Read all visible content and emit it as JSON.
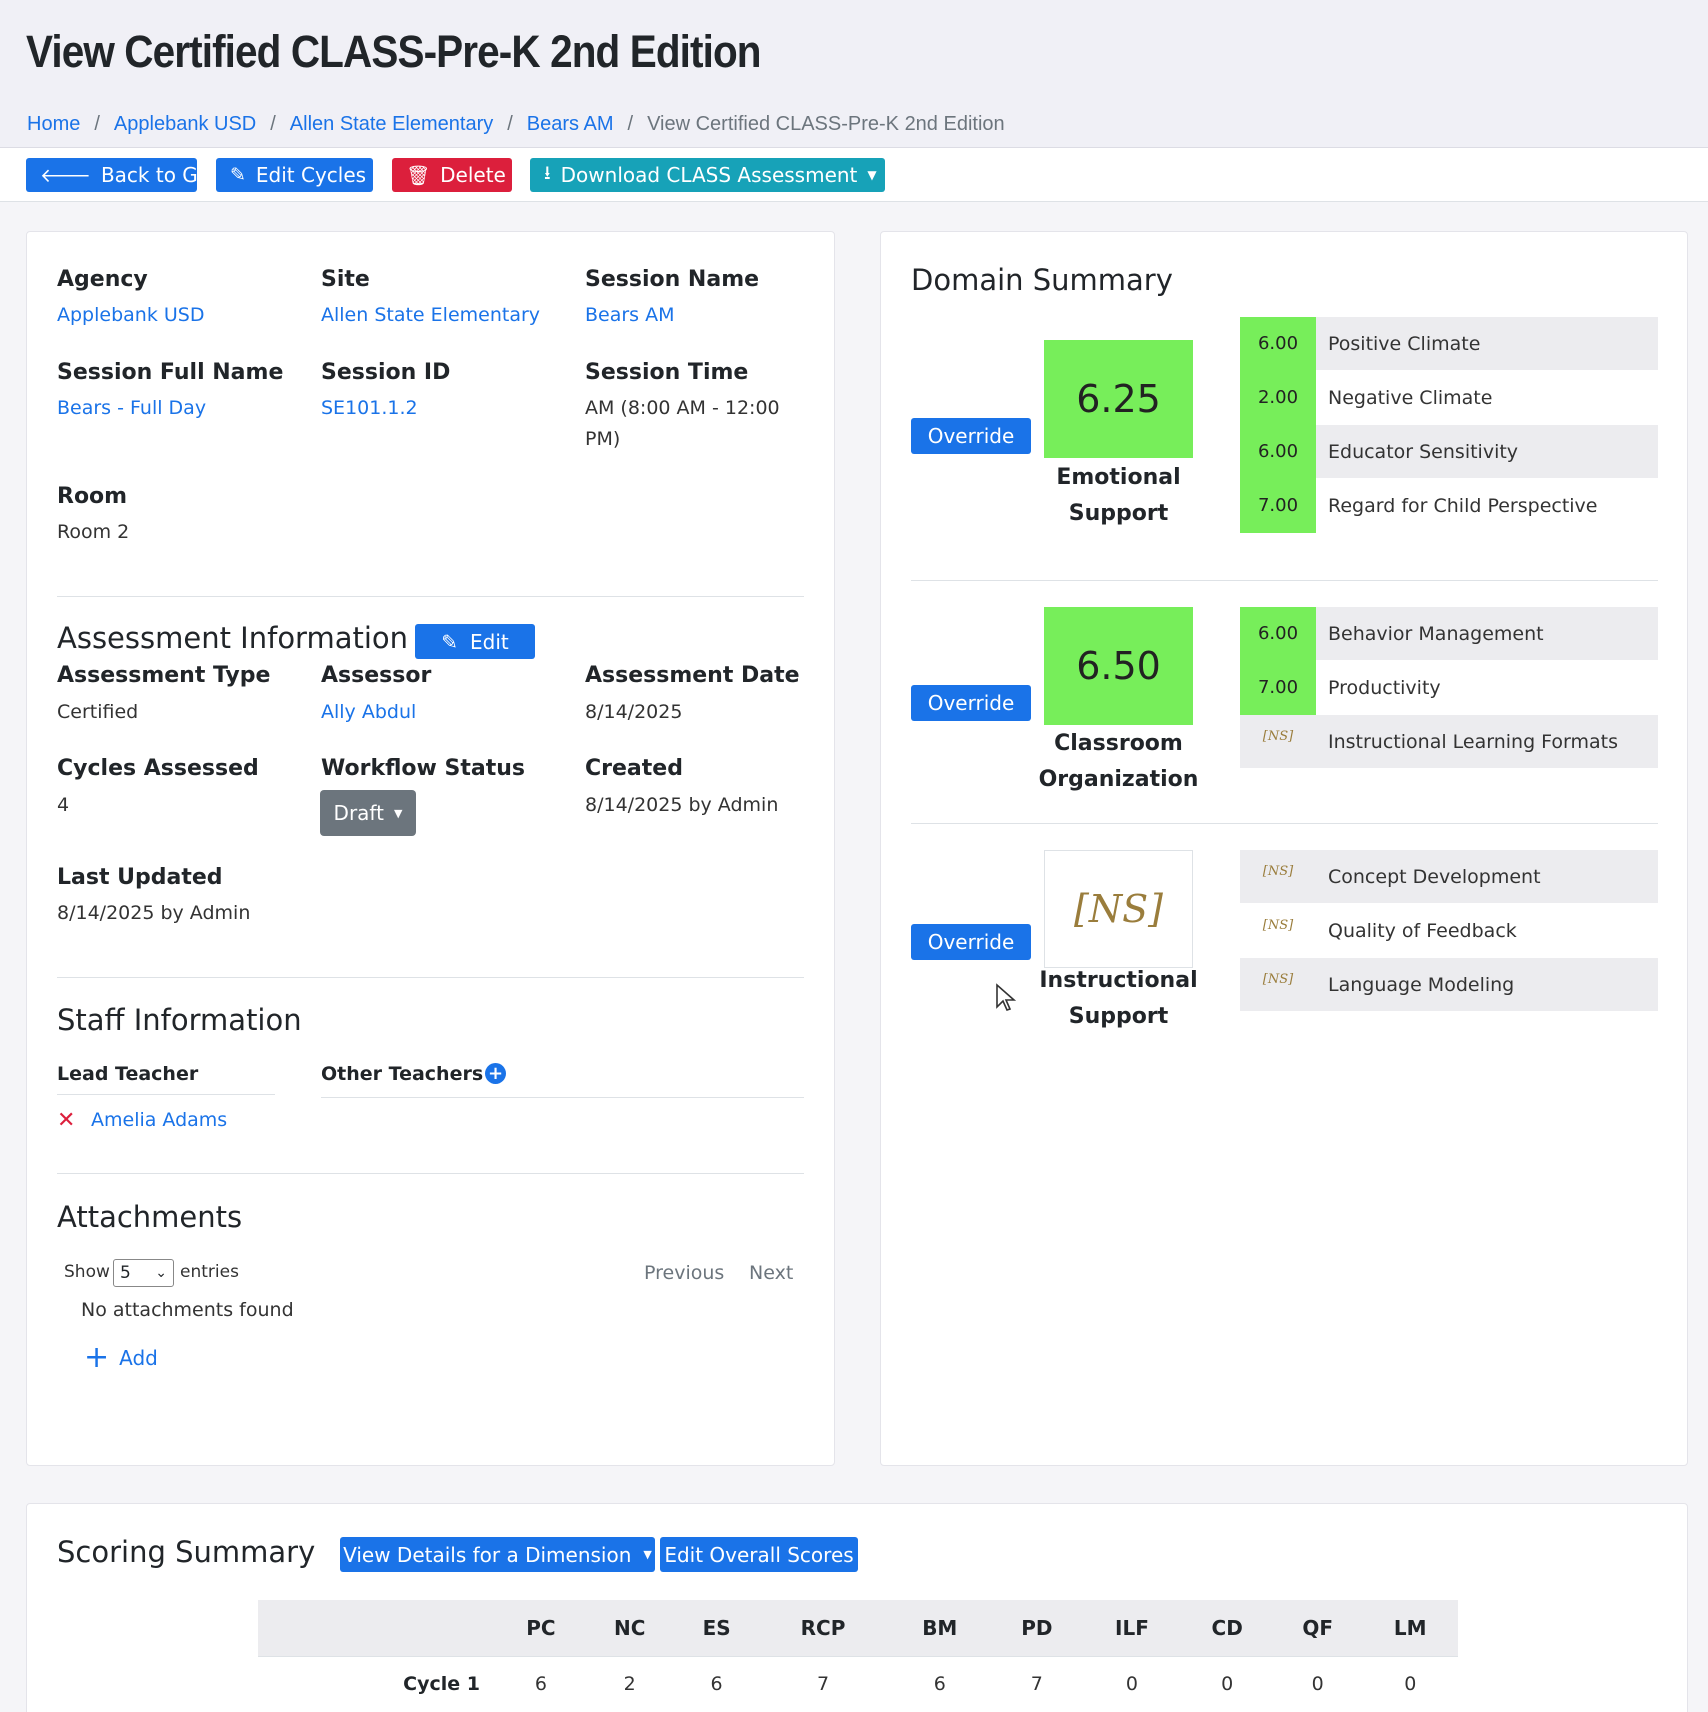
{
  "page": {
    "title": "View Certified CLASS-Pre-K 2nd Edition",
    "breadcrumb": [
      "Home",
      "Applebank USD",
      "Allen State Elementary",
      "Bears AM"
    ],
    "breadcrumb_current": "View Certified CLASS-Pre-K 2nd Edition"
  },
  "toolbar": {
    "back_label": "Back to Grid",
    "edit_cycles_label": "Edit Cycles",
    "delete_label": "Delete",
    "download_label": "Download CLASS Assessment"
  },
  "session": {
    "agency_label": "Agency",
    "agency": "Applebank USD",
    "site_label": "Site",
    "site": "Allen State Elementary",
    "session_name_label": "Session Name",
    "session_name": "Bears AM",
    "full_name_label": "Session Full Name",
    "full_name": "Bears - Full Day",
    "session_id_label": "Session ID",
    "session_id": "SE101.1.2",
    "session_time_label": "Session Time",
    "session_time": "AM (8:00 AM - 12:00 PM)",
    "room_label": "Room",
    "room": "Room 2"
  },
  "assessment": {
    "title": "Assessment Information",
    "edit_label": "Edit",
    "type_label": "Assessment Type",
    "type": "Certified",
    "assessor_label": "Assessor",
    "assessor": "Ally Abdul",
    "date_label": "Assessment Date",
    "date": "8/14/2025",
    "cycles_label": "Cycles Assessed",
    "cycles": "4",
    "workflow_label": "Workflow Status",
    "workflow": "Draft",
    "created_label": "Created",
    "created": "8/14/2025 by Admin",
    "updated_label": "Last Updated",
    "updated": "8/14/2025 by Admin"
  },
  "staff": {
    "title": "Staff Information",
    "lead_label": "Lead Teacher",
    "other_label": "Other Teachers",
    "lead_teacher": "Amelia Adams"
  },
  "attachments": {
    "title": "Attachments",
    "show_label": "Show",
    "entries_value": "5",
    "entries_label": "entries",
    "previous": "Previous",
    "next": "Next",
    "empty": "No attachments found",
    "add": "Add"
  },
  "domain_summary": {
    "title": "Domain Summary",
    "override_label": "Override",
    "domains": [
      {
        "score": "6.25",
        "name_line1": "Emotional",
        "name_line2": "Support",
        "dimensions": [
          {
            "score": "6.00",
            "name": "Positive Climate"
          },
          {
            "score": "2.00",
            "name": "Negative Climate"
          },
          {
            "score": "6.00",
            "name": "Educator Sensitivity"
          },
          {
            "score": "7.00",
            "name": "Regard for Child Perspective"
          }
        ]
      },
      {
        "score": "6.50",
        "name_line1": "Classroom",
        "name_line2": "Organization",
        "dimensions": [
          {
            "score": "6.00",
            "name": "Behavior Management"
          },
          {
            "score": "7.00",
            "name": "Productivity"
          },
          {
            "score": "[NS]",
            "name": "Instructional Learning Formats"
          }
        ]
      },
      {
        "score": "[NS]",
        "name_line1": "Instructional",
        "name_line2": "Support",
        "dimensions": [
          {
            "score": "[NS]",
            "name": "Concept Development"
          },
          {
            "score": "[NS]",
            "name": "Quality of Feedback"
          },
          {
            "score": "[NS]",
            "name": "Language Modeling"
          }
        ]
      }
    ],
    "colors": {
      "met": "#77ee5a",
      "ns_text": "#9a7d3c"
    }
  },
  "scoring_summary": {
    "title": "Scoring Summary",
    "view_details_label": "View Details for a Dimension",
    "edit_overall_label": "Edit Overall Scores",
    "columns": [
      "PC",
      "NC",
      "ES",
      "RCP",
      "BM",
      "PD",
      "ILF",
      "CD",
      "QF",
      "LM"
    ],
    "rows": [
      {
        "label": "Cycle 1",
        "values": [
          "6",
          "2",
          "6",
          "7",
          "6",
          "7",
          "0",
          "0",
          "0",
          "0"
        ]
      }
    ]
  }
}
